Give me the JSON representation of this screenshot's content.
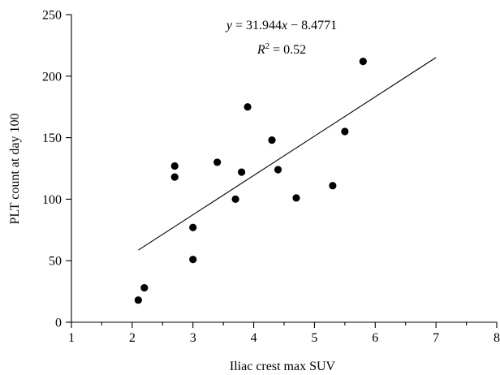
{
  "chart_data": {
    "type": "scatter",
    "title": "",
    "xlabel": "Iliac crest max SUV",
    "ylabel": "PLT count at day 100",
    "xlim": [
      1,
      8
    ],
    "ylim": [
      0,
      250
    ],
    "x_ticks": [
      1,
      2,
      3,
      4,
      5,
      6,
      7,
      8
    ],
    "x_minor_ticks": [
      1.5,
      2.5,
      3.5,
      4.5,
      5.5,
      6.5,
      7.5
    ],
    "y_ticks": [
      0,
      50,
      100,
      150,
      200,
      250
    ],
    "grid": false,
    "legend": "none",
    "point_color": "#000000",
    "points": [
      {
        "x": 2.1,
        "y": 18
      },
      {
        "x": 2.2,
        "y": 28
      },
      {
        "x": 2.7,
        "y": 127
      },
      {
        "x": 2.7,
        "y": 118
      },
      {
        "x": 3.0,
        "y": 77
      },
      {
        "x": 3.0,
        "y": 51
      },
      {
        "x": 3.4,
        "y": 130
      },
      {
        "x": 3.7,
        "y": 100
      },
      {
        "x": 3.8,
        "y": 122
      },
      {
        "x": 3.9,
        "y": 175
      },
      {
        "x": 4.3,
        "y": 148
      },
      {
        "x": 4.4,
        "y": 124
      },
      {
        "x": 4.7,
        "y": 101
      },
      {
        "x": 5.3,
        "y": 111
      },
      {
        "x": 5.5,
        "y": 155
      },
      {
        "x": 5.8,
        "y": 212
      }
    ],
    "trendline": {
      "slope": 31.944,
      "intercept": -8.4771,
      "x_range": [
        2.1,
        7.0
      ]
    },
    "annotations": {
      "equation": {
        "y": "y",
        "eq": " = 31.944",
        "x": "x",
        "rest": " − 8.4771"
      },
      "r_squared": {
        "r": "R",
        "sup": "2",
        "rest": " = 0.52"
      }
    }
  }
}
